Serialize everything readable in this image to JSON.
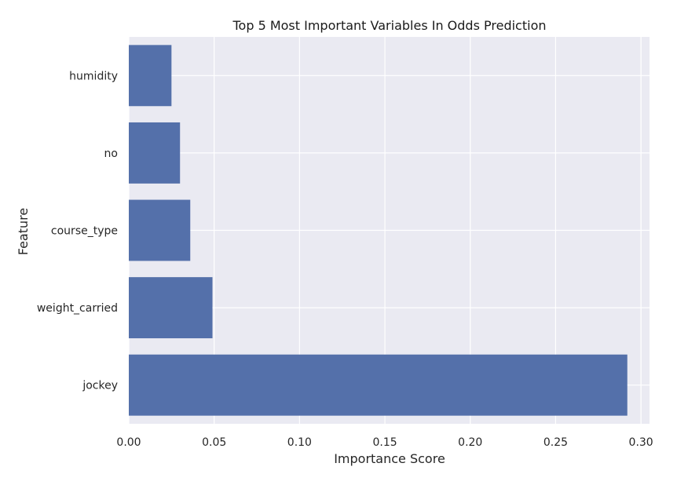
{
  "chart_data": {
    "type": "bar",
    "orientation": "horizontal",
    "title": "Top 5 Most Important Variables In Odds Prediction",
    "xlabel": "Importance Score",
    "ylabel": "Feature",
    "categories": [
      "humidity",
      "no",
      "course_type",
      "weight_carried",
      "jockey"
    ],
    "values": [
      0.025,
      0.03,
      0.036,
      0.049,
      0.292
    ],
    "xlim": [
      0.0,
      0.305
    ],
    "xticks": [
      "0.00",
      "0.05",
      "0.10",
      "0.15",
      "0.20",
      "0.25",
      "0.30"
    ],
    "xtick_values": [
      0.0,
      0.05,
      0.1,
      0.15,
      0.2,
      0.25,
      0.3
    ],
    "grid": true,
    "legend": "none",
    "colors": {
      "bar": "#5470aa",
      "plot_background": "#eaeaf2",
      "grid": "#ffffff"
    }
  }
}
